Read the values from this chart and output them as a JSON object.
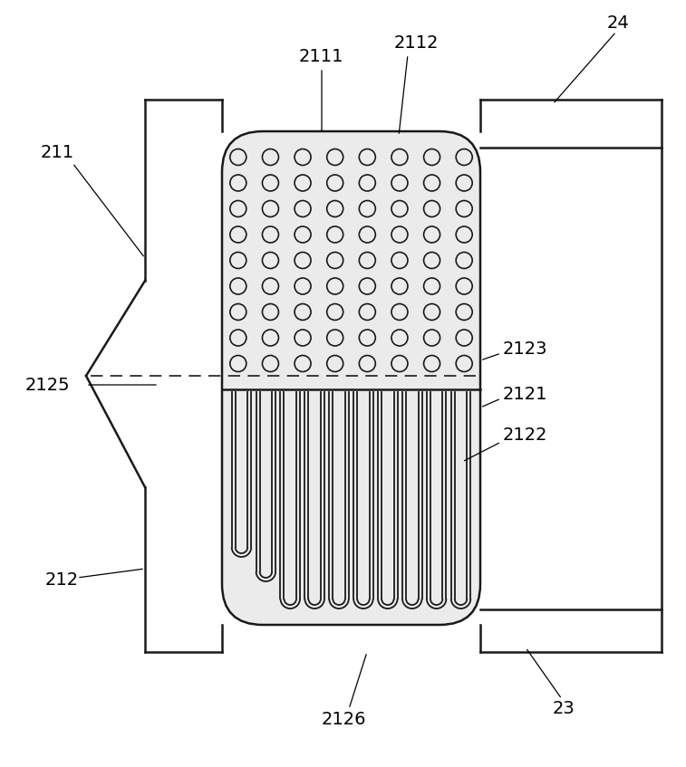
{
  "bg_color": "#ffffff",
  "line_color": "#1a1a1a",
  "light_gray_fill": "#ebebeb",
  "fig_width": 7.57,
  "fig_height": 8.47,
  "dpi": 100
}
